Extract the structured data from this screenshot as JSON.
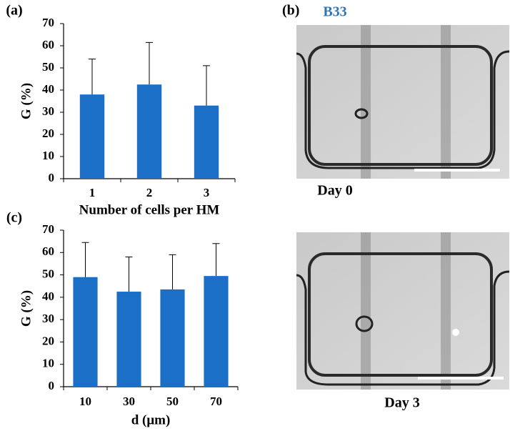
{
  "chart_data": [
    {
      "type": "bar",
      "panel_label": "(a)",
      "categories": [
        "1",
        "2",
        "3"
      ],
      "values": [
        38,
        42.5,
        33
      ],
      "errors": [
        16,
        19,
        18
      ],
      "color": "#1b6fc6",
      "ylim": [
        0,
        70
      ],
      "yticks": [
        0,
        10,
        20,
        30,
        40,
        50,
        60,
        70
      ],
      "xlabel": "Number of cells per HM",
      "ylabel": "G (%)"
    },
    {
      "type": "bar",
      "panel_label": "(c)",
      "categories": [
        "10",
        "30",
        "50",
        "70"
      ],
      "values": [
        49,
        42.5,
        43.5,
        49.5
      ],
      "errors": [
        15.5,
        15.5,
        15.5,
        14.5
      ],
      "color": "#1b6fc6",
      "ylim": [
        0,
        70
      ],
      "yticks": [
        0,
        10,
        20,
        30,
        40,
        50,
        60,
        70
      ],
      "xlabel": "d (μm)",
      "ylabel": "G (%)"
    }
  ],
  "images": {
    "panel_label": "(b)",
    "title": "B33",
    "captions": [
      "Day 0",
      "Day 3"
    ]
  }
}
